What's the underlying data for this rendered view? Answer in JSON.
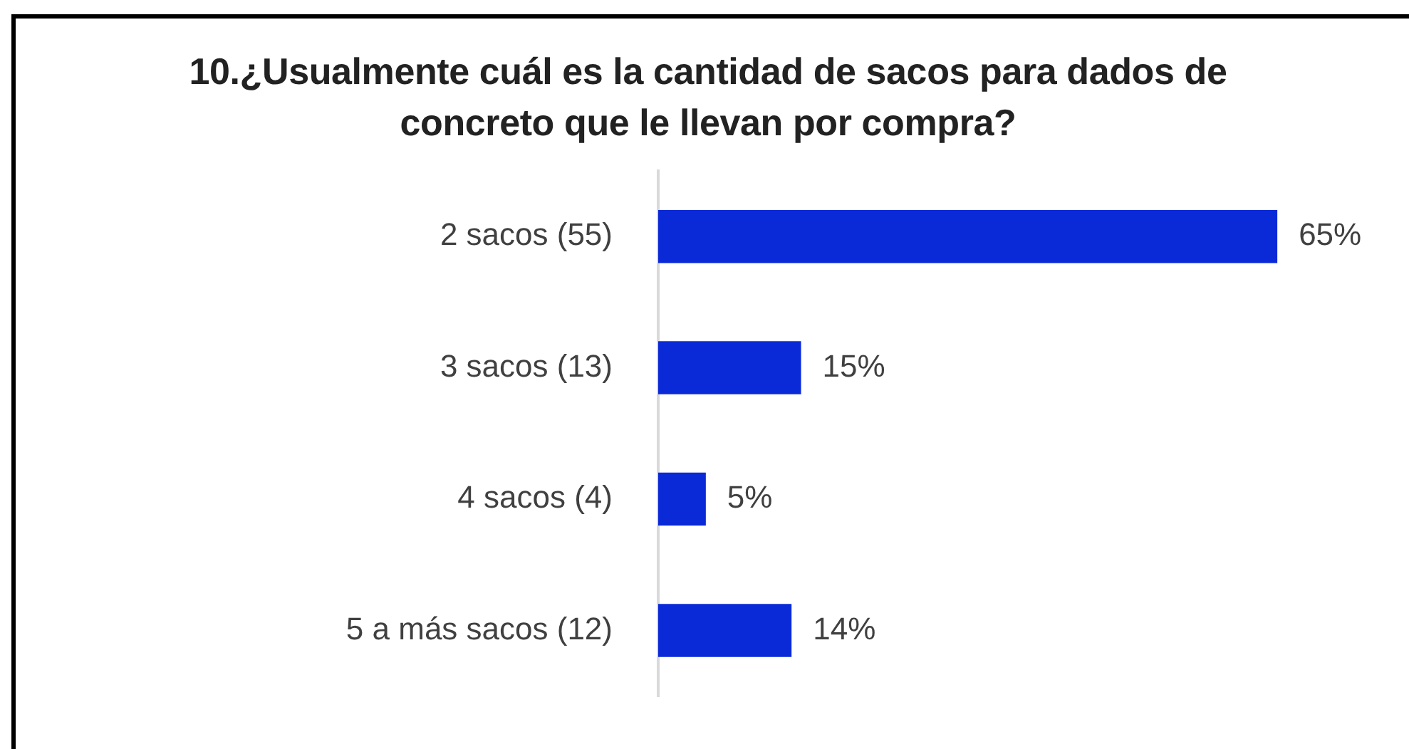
{
  "chart_data": {
    "type": "bar",
    "orientation": "horizontal",
    "title": "10.¿Usualmente cuál es la cantidad de sacos para dados de concreto que le llevan por compra?",
    "categories": [
      "2 sacos (55)",
      "3 sacos (13)",
      "4 sacos (4)",
      "5 a más sacos (12)"
    ],
    "values": [
      65,
      15,
      5,
      14
    ],
    "value_labels": [
      "65%",
      "15%",
      "5%",
      "14%"
    ],
    "color": "#0a2ad8"
  }
}
